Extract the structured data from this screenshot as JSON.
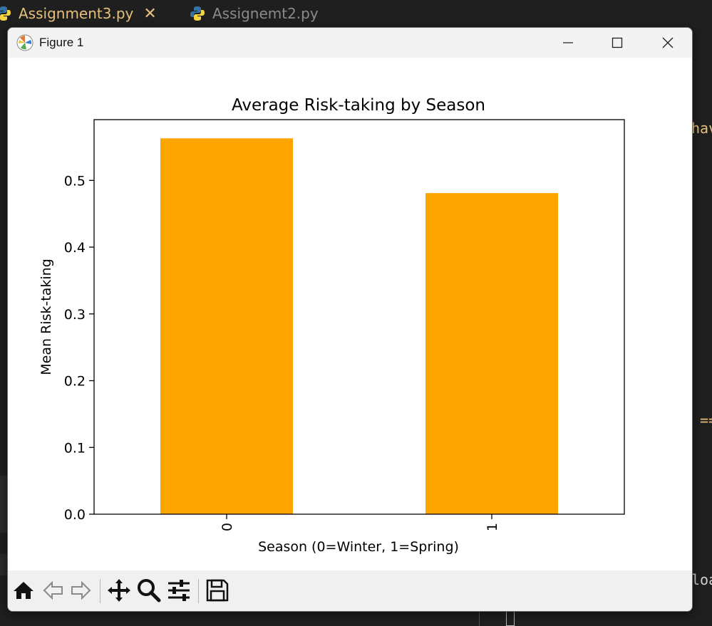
{
  "editor": {
    "tabs": [
      {
        "label": "Assignment3.py",
        "active": true
      },
      {
        "label": "Assignemt2.py",
        "active": false
      }
    ],
    "peek_right_top": "hav",
    "peek_right_mid": "==",
    "peek_right_bottom": "loa"
  },
  "window": {
    "title": "Figure 1",
    "controls": [
      "minimize-icon",
      "maximize-icon",
      "close-icon"
    ]
  },
  "toolbar": {
    "buttons": [
      "home-icon",
      "back-icon",
      "forward-icon",
      "pan-icon",
      "zoom-icon",
      "configure-subplots-icon",
      "save-icon"
    ]
  },
  "chart_data": {
    "type": "bar",
    "title": "Average Risk-taking by Season",
    "xlabel": "Season (0=Winter, 1=Spring)",
    "ylabel": "Mean Risk-taking",
    "categories": [
      "0",
      "1"
    ],
    "values": [
      0.563,
      0.481
    ],
    "ylim": [
      0,
      0.591
    ],
    "yticks": [
      0.0,
      0.1,
      0.2,
      0.3,
      0.4,
      0.5
    ],
    "ytick_labels": [
      "0.0",
      "0.1",
      "0.2",
      "0.3",
      "0.4",
      "0.5"
    ],
    "xtick_rotation": 90,
    "bar_color": "#ffa500",
    "grid": false,
    "legend": false
  }
}
